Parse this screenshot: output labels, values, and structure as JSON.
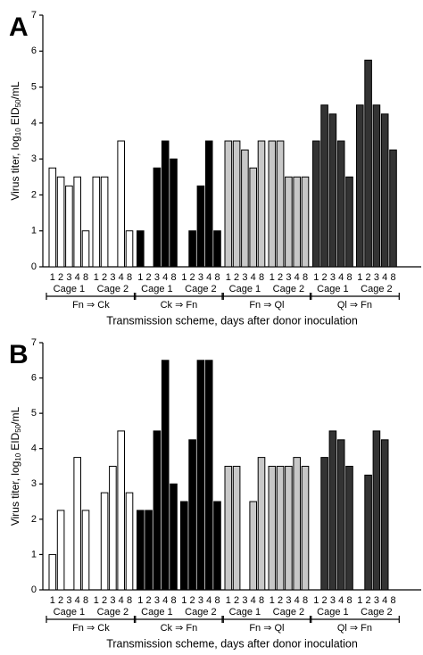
{
  "chart_data": [
    {
      "type": "bar",
      "panel": "A",
      "y_label": [
        "Virus titer, log",
        "10",
        "EID",
        "50",
        "/mL"
      ],
      "x_label": "Transmission scheme, days after donor inoculation",
      "days": [
        "1",
        "2",
        "3",
        "4",
        "8"
      ],
      "cages": [
        "Cage 1",
        "Cage 2"
      ],
      "ylim": [
        0,
        7
      ],
      "yticks": [
        0,
        1,
        2,
        3,
        4,
        5,
        6,
        7
      ],
      "series": [
        {
          "name": "Fn ⇒ Ck",
          "color": "#ffffff",
          "values": [
            [
              2.75,
              2.5,
              2.25,
              2.5,
              1.0
            ],
            [
              2.5,
              2.5,
              null,
              3.5,
              1.0
            ]
          ]
        },
        {
          "name": "Ck ⇒ Fn",
          "color": "#000000",
          "values": [
            [
              1.0,
              null,
              2.75,
              3.5,
              3.0
            ],
            [
              null,
              1.0,
              2.25,
              3.5,
              1.0
            ]
          ]
        },
        {
          "name": "Fn ⇒ Ql",
          "color": "#c8c8c8",
          "values": [
            [
              3.5,
              3.5,
              3.25,
              2.75,
              3.5
            ],
            [
              3.5,
              3.5,
              2.5,
              2.5,
              2.5
            ]
          ]
        },
        {
          "name": "Ql ⇒ Fn",
          "color": "#333333",
          "values": [
            [
              3.5,
              4.5,
              4.25,
              3.5,
              2.5
            ],
            [
              4.5,
              5.75,
              4.5,
              4.25,
              3.25
            ]
          ]
        }
      ]
    },
    {
      "type": "bar",
      "panel": "B",
      "y_label": [
        "Virus titer, log",
        "10",
        "EID",
        "50",
        "/mL"
      ],
      "x_label": "Transmission scheme, days after donor inoculation",
      "days": [
        "1",
        "2",
        "3",
        "4",
        "8"
      ],
      "cages": [
        "Cage 1",
        "Cage 2"
      ],
      "ylim": [
        0,
        7
      ],
      "yticks": [
        0,
        1,
        2,
        3,
        4,
        5,
        6,
        7
      ],
      "series": [
        {
          "name": "Fn ⇒ Ck",
          "color": "#ffffff",
          "values": [
            [
              1.0,
              2.25,
              null,
              3.75,
              2.25
            ],
            [
              null,
              2.75,
              3.5,
              4.5,
              2.75
            ]
          ]
        },
        {
          "name": "Ck ⇒ Fn",
          "color": "#000000",
          "values": [
            [
              2.25,
              2.25,
              4.5,
              6.5,
              3.0
            ],
            [
              2.5,
              4.25,
              6.5,
              6.5,
              2.5
            ]
          ]
        },
        {
          "name": "Fn ⇒ Ql",
          "color": "#c8c8c8",
          "values": [
            [
              3.5,
              3.5,
              null,
              2.5,
              3.75
            ],
            [
              3.5,
              3.5,
              3.5,
              3.75,
              3.5
            ]
          ]
        },
        {
          "name": "Ql ⇒ Fn",
          "color": "#333333",
          "values": [
            [
              null,
              3.75,
              4.5,
              4.25,
              3.5
            ],
            [
              null,
              3.25,
              4.5,
              4.25,
              null
            ]
          ]
        }
      ]
    }
  ]
}
